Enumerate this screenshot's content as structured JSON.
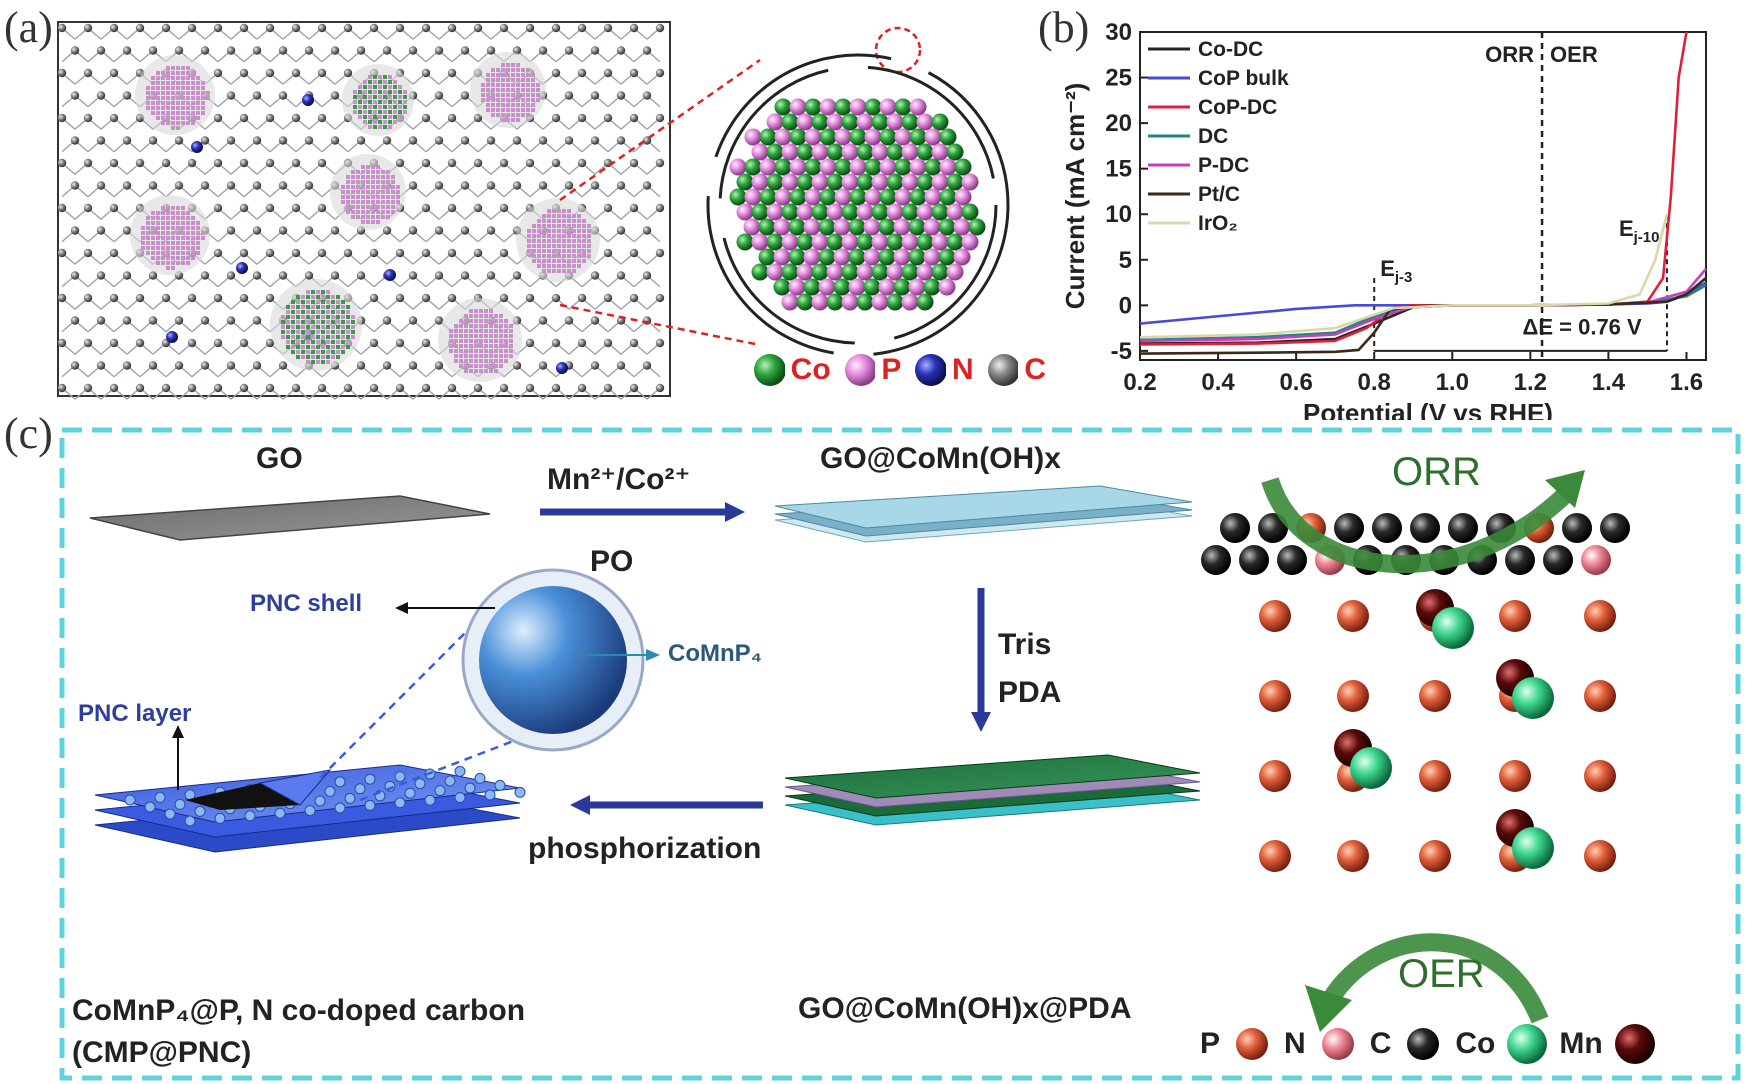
{
  "panel_a": {
    "label": "(a)",
    "legend": [
      {
        "symbol": "Co",
        "color": "#2fa83f"
      },
      {
        "symbol": "P",
        "color": "#e58fe0"
      },
      {
        "symbol": "N",
        "color": "#2a33b8"
      },
      {
        "symbol": "C",
        "color": "#8a8a8a"
      }
    ]
  },
  "panel_b": {
    "label": "(b)",
    "region_orr": "ORR",
    "region_oer": "OER",
    "annot_ej3_main": "E",
    "annot_ej3_sub": "j-3",
    "annot_ej10_main": "E",
    "annot_ej10_sub": "j-10",
    "annot_delta_e": "ΔE = 0.76 V",
    "chart_data": {
      "type": "line",
      "xlabel": "Potential (V vs RHE)",
      "ylabel": "Current (mA cm⁻²)",
      "xlim": [
        0.2,
        1.65
      ],
      "ylim": [
        -6,
        30
      ],
      "xticks": [
        "0.2",
        "0.4",
        "0.6",
        "0.8",
        "1.0",
        "1.2",
        "1.4",
        "1.6"
      ],
      "yticks": [
        "-5",
        "0",
        "5",
        "10",
        "15",
        "20",
        "25",
        "30"
      ],
      "legend_position": "top-left",
      "series": [
        {
          "name": "Co-DC",
          "color": "#222222",
          "x": [
            0.2,
            0.5,
            0.7,
            0.8,
            0.9,
            1.0,
            1.2,
            1.4,
            1.5,
            1.55,
            1.6,
            1.65
          ],
          "y": [
            -4.2,
            -4.1,
            -3.7,
            -2.0,
            -0.2,
            0,
            0,
            0.1,
            0.3,
            0.5,
            1.2,
            3.0
          ]
        },
        {
          "name": "CoP bulk",
          "color": "#4a4ad8",
          "x": [
            0.2,
            0.4,
            0.6,
            0.75,
            0.9,
            1.0,
            1.2,
            1.4,
            1.5,
            1.55,
            1.6,
            1.65
          ],
          "y": [
            -2.0,
            -1.2,
            -0.4,
            0,
            0,
            0,
            0,
            0.1,
            0.2,
            0.4,
            1.2,
            2.5
          ]
        },
        {
          "name": "CoP-DC",
          "color": "#e0203a",
          "x": [
            0.2,
            0.5,
            0.7,
            0.78,
            0.85,
            0.9,
            1.0,
            1.2,
            1.4,
            1.5,
            1.54,
            1.56,
            1.58,
            1.6
          ],
          "y": [
            -4.3,
            -4.2,
            -3.9,
            -2.5,
            -0.3,
            0,
            0,
            0,
            0.1,
            0.4,
            3,
            12,
            25,
            30
          ]
        },
        {
          "name": "DC",
          "color": "#1d8a7a",
          "x": [
            0.2,
            0.5,
            0.7,
            0.8,
            0.9,
            1.0,
            1.2,
            1.4,
            1.5,
            1.6,
            1.65
          ],
          "y": [
            -3.8,
            -3.5,
            -3.0,
            -1.2,
            -0.1,
            0,
            0,
            0.1,
            0.3,
            1.0,
            2.2
          ]
        },
        {
          "name": "P-DC",
          "color": "#c43fc4",
          "x": [
            0.2,
            0.5,
            0.7,
            0.8,
            0.9,
            1.0,
            1.2,
            1.4,
            1.5,
            1.6,
            1.65
          ],
          "y": [
            -3.9,
            -3.7,
            -3.2,
            -1.5,
            -0.1,
            0,
            0,
            0.1,
            0.3,
            1.5,
            4.0
          ]
        },
        {
          "name": "Pt/C",
          "color": "#3b2a1a",
          "x": [
            0.2,
            0.5,
            0.7,
            0.76,
            0.8,
            0.84,
            0.9,
            1.0,
            1.2,
            1.4,
            1.55,
            1.6,
            1.65
          ],
          "y": [
            -5.3,
            -5.2,
            -5.1,
            -4.9,
            -3.0,
            -0.5,
            -0.1,
            0,
            0,
            0.1,
            0.4,
            1.2,
            3.0
          ]
        },
        {
          "name": "IrO₂",
          "color": "#d8d8a8",
          "x": [
            0.2,
            0.5,
            0.7,
            0.85,
            1.0,
            1.2,
            1.4,
            1.48,
            1.52,
            1.55
          ],
          "y": [
            -3.5,
            -3.2,
            -2.5,
            -0.3,
            0,
            0,
            0.2,
            1.2,
            5,
            10
          ]
        }
      ]
    }
  },
  "panel_c": {
    "label": "(c)",
    "go": "GO",
    "reagent_top_1": "Mn²⁺/Co²⁺",
    "reagent_top_2": "PO",
    "go_coMn": "GO@CoMn(OH)x",
    "reagent_down_1": "Tris",
    "reagent_down_2": "PDA",
    "pnc_shell": "PNC shell",
    "comnp4": "CoMnP₄",
    "pnc_layer": "PNC layer",
    "phosphorization": "phosphorization",
    "final_line1": "CoMnP₄@P, N co-doped carbon",
    "final_line2": "(CMP@PNC)",
    "go_pda": "GO@CoMn(OH)x@PDA",
    "orr": "ORR",
    "oer": "OER",
    "legend": [
      {
        "symbol": "P",
        "color": "#e0603a"
      },
      {
        "symbol": "N",
        "color": "#f08a9a"
      },
      {
        "symbol": "C",
        "color": "#2a2a2a"
      },
      {
        "symbol": "Co",
        "color": "#3fd890"
      },
      {
        "symbol": "Mn",
        "color": "#5a0a0a"
      }
    ]
  }
}
